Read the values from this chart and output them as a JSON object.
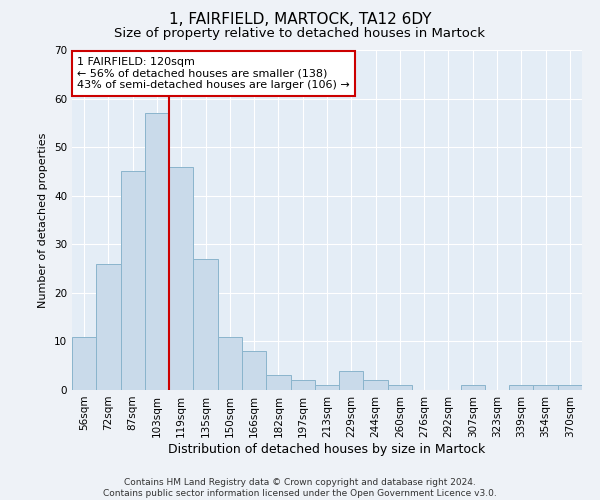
{
  "title": "1, FAIRFIELD, MARTOCK, TA12 6DY",
  "subtitle": "Size of property relative to detached houses in Martock",
  "xlabel": "Distribution of detached houses by size in Martock",
  "ylabel": "Number of detached properties",
  "categories": [
    "56sqm",
    "72sqm",
    "87sqm",
    "103sqm",
    "119sqm",
    "135sqm",
    "150sqm",
    "166sqm",
    "182sqm",
    "197sqm",
    "213sqm",
    "229sqm",
    "244sqm",
    "260sqm",
    "276sqm",
    "292sqm",
    "307sqm",
    "323sqm",
    "339sqm",
    "354sqm",
    "370sqm"
  ],
  "values": [
    11,
    26,
    45,
    57,
    46,
    27,
    11,
    8,
    3,
    2,
    1,
    4,
    2,
    1,
    0,
    0,
    1,
    0,
    1,
    1,
    1
  ],
  "bar_color": "#c9daea",
  "bar_edge_color": "#8ab4cc",
  "bar_width": 1.0,
  "ylim": [
    0,
    70
  ],
  "yticks": [
    0,
    10,
    20,
    30,
    40,
    50,
    60,
    70
  ],
  "vline_x_index": 4,
  "vline_color": "#cc0000",
  "annotation_text": "1 FAIRFIELD: 120sqm\n← 56% of detached houses are smaller (138)\n43% of semi-detached houses are larger (106) →",
  "annotation_box_facecolor": "#ffffff",
  "annotation_box_edgecolor": "#cc0000",
  "footer_line1": "Contains HM Land Registry data © Crown copyright and database right 2024.",
  "footer_line2": "Contains public sector information licensed under the Open Government Licence v3.0.",
  "background_color": "#eef2f7",
  "plot_bg_color": "#e4edf6",
  "grid_color": "#ffffff",
  "title_fontsize": 11,
  "subtitle_fontsize": 9.5,
  "xlabel_fontsize": 9,
  "ylabel_fontsize": 8,
  "tick_fontsize": 7.5,
  "annotation_fontsize": 8,
  "footer_fontsize": 6.5
}
